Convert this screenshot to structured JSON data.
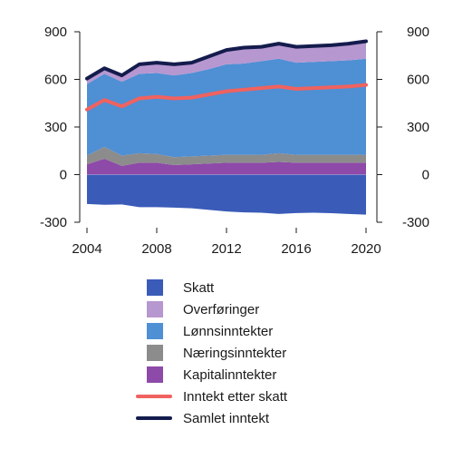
{
  "chart_data": {
    "type": "area",
    "title": "",
    "xlabel": "",
    "ylabel": "",
    "ylim": [
      -300,
      900
    ],
    "yticks": [
      -300,
      0,
      300,
      600,
      900
    ],
    "yticks_right": true,
    "xticks": [
      2004,
      2008,
      2012,
      2016,
      2020
    ],
    "grid": false,
    "legend_position": "bottom",
    "x": [
      2004,
      2005,
      2006,
      2007,
      2008,
      2009,
      2010,
      2011,
      2012,
      2013,
      2014,
      2015,
      2016,
      2017,
      2018,
      2019,
      2020
    ],
    "series": [
      {
        "name": "Skatt",
        "kind": "area-negative",
        "color": "#3a5bb8",
        "values": [
          -185,
          -190,
          -188,
          -205,
          -205,
          -208,
          -212,
          -222,
          -232,
          -238,
          -240,
          -248,
          -242,
          -240,
          -243,
          -248,
          -252
        ]
      },
      {
        "name": "Kapitalinntekter",
        "kind": "stack",
        "color": "#8e4aa8",
        "values": [
          65,
          100,
          55,
          75,
          75,
          60,
          65,
          70,
          75,
          75,
          75,
          80,
          75,
          75,
          75,
          75,
          75
        ]
      },
      {
        "name": "Næringsinntekter",
        "kind": "stack",
        "color": "#8c8c8c",
        "values": [
          55,
          75,
          65,
          60,
          55,
          50,
          50,
          50,
          50,
          50,
          50,
          55,
          50,
          50,
          50,
          50,
          50
        ]
      },
      {
        "name": "Lønnsinntekter",
        "kind": "stack",
        "color": "#4f8fd4",
        "values": [
          450,
          460,
          465,
          500,
          510,
          515,
          525,
          545,
          570,
          575,
          590,
          595,
          580,
          585,
          590,
          595,
          605
        ]
      },
      {
        "name": "Overføringer",
        "kind": "stack",
        "color": "#b797d0",
        "values": [
          35,
          35,
          40,
          60,
          65,
          70,
          65,
          80,
          90,
          100,
          90,
          95,
          100,
          100,
          100,
          105,
          110
        ]
      },
      {
        "name": "Inntekt etter skatt",
        "kind": "line",
        "color": "#f0625f",
        "values": [
          410,
          470,
          430,
          480,
          490,
          480,
          485,
          505,
          525,
          535,
          545,
          555,
          540,
          545,
          550,
          555,
          565
        ]
      },
      {
        "name": "Samlet inntekt",
        "kind": "line",
        "color": "#141c4d",
        "values": [
          605,
          670,
          625,
          695,
          705,
          695,
          705,
          745,
          785,
          800,
          805,
          825,
          805,
          810,
          815,
          825,
          840
        ]
      }
    ],
    "legend": [
      {
        "name": "Skatt",
        "color": "#3a5bb8",
        "marker": "square"
      },
      {
        "name": "Overføringer",
        "color": "#b797d0",
        "marker": "square"
      },
      {
        "name": "Lønnsinntekter",
        "color": "#4f8fd4",
        "marker": "square"
      },
      {
        "name": "Næringsinntekter",
        "color": "#8c8c8c",
        "marker": "square"
      },
      {
        "name": "Kapitalinntekter",
        "color": "#8e4aa8",
        "marker": "square"
      },
      {
        "name": "Inntekt etter skatt",
        "color": "#f0625f",
        "marker": "line"
      },
      {
        "name": "Samlet inntekt",
        "color": "#141c4d",
        "marker": "line"
      }
    ]
  }
}
